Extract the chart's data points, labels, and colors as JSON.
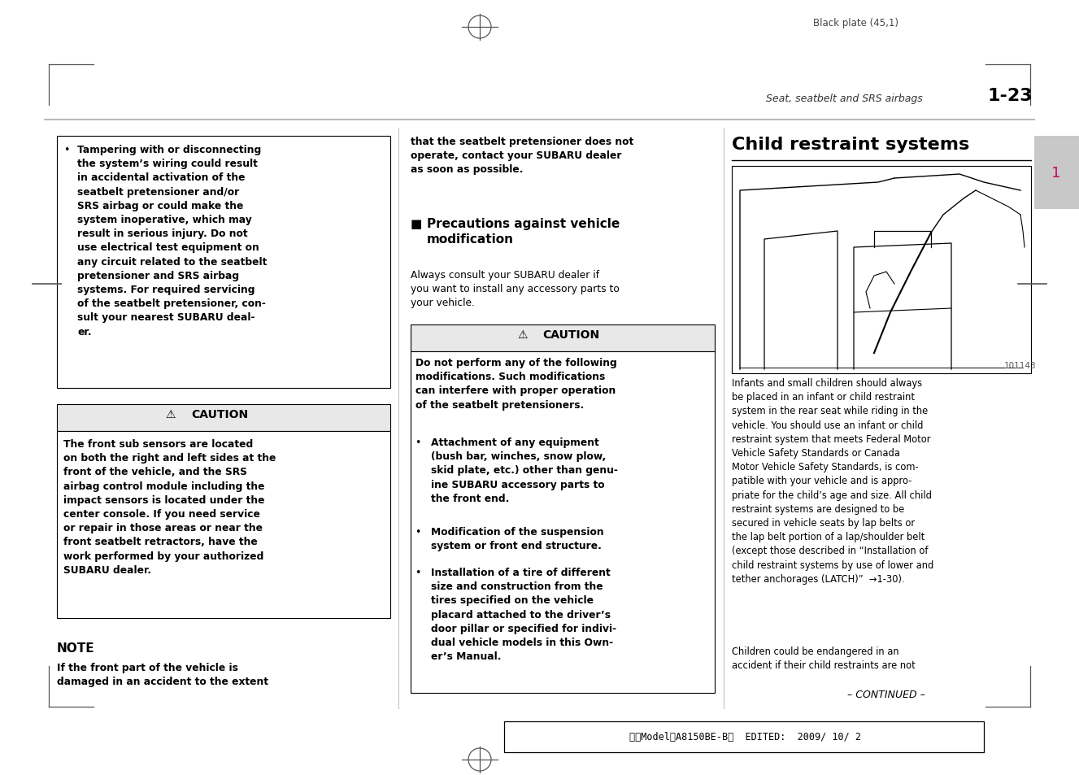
{
  "page_bg": "#ffffff",
  "black_plate_text": "Black plate (45,1)",
  "header_italic": "Seat, seatbelt and SRS airbags",
  "header_bold": "1-23",
  "chapter_tab_color": "#cc0066",
  "footer_text": "北米Model「A8150BE-B」  EDITED:  2009/ 10/ 2",
  "right_title": "Child restraint systems",
  "image_label": "101143",
  "continued": "– CONTINUED –"
}
